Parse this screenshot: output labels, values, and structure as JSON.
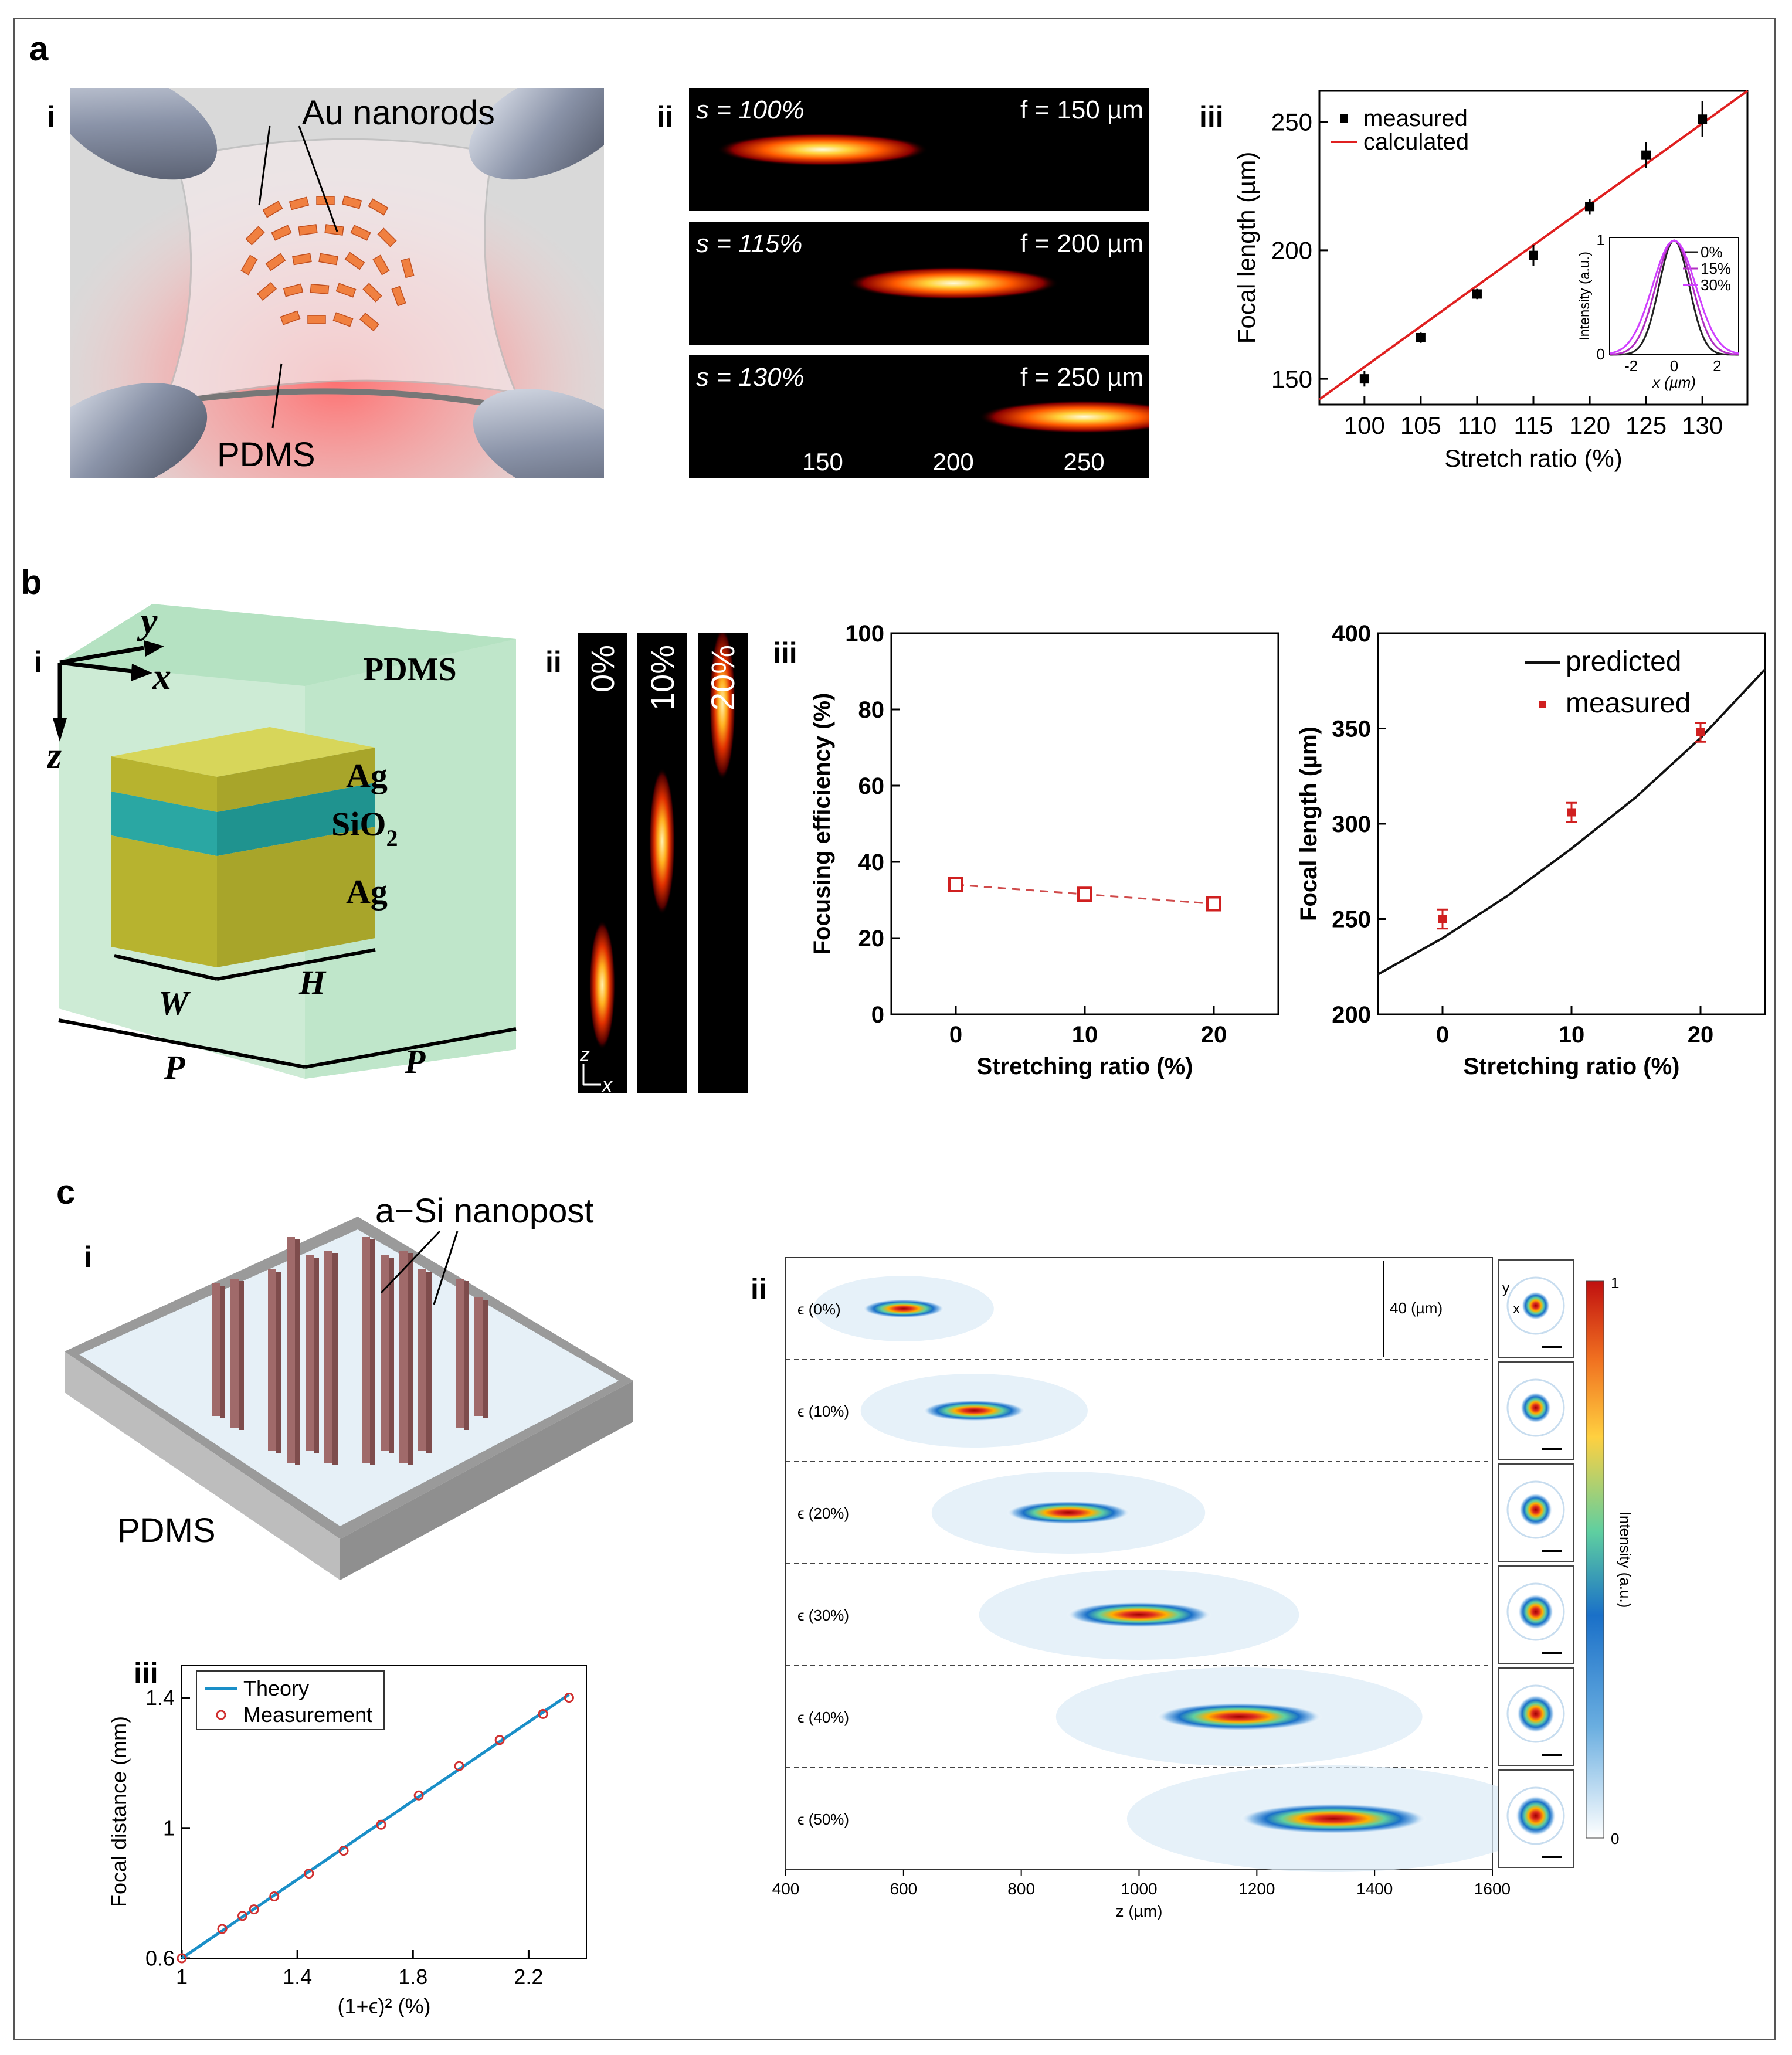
{
  "panels": {
    "a": {
      "letter": "a",
      "i": {
        "label": "i",
        "nanorods": "Au nanorods",
        "substrate": "PDMS"
      },
      "ii": {
        "label": "ii",
        "rows": [
          {
            "s": "s = 100%",
            "f": "f = 150 µm",
            "focus": 150
          },
          {
            "s": "s = 115%",
            "f": "f = 200 µm",
            "focus": 200
          },
          {
            "s": "s = 130%",
            "f": "f = 250 µm",
            "focus": 250
          }
        ],
        "ticks": [
          "150",
          "200",
          "250"
        ]
      },
      "iii": {
        "label": "iii"
      }
    },
    "b": {
      "letter": "b",
      "i": {
        "label": "i",
        "axis_y": "y",
        "axis_x": "x",
        "axis_z": "z",
        "pdms": "PDMS",
        "ag_top": "Ag",
        "sio2": "SiO",
        "sio2_sub": "2",
        "ag_bottom": "Ag",
        "w": "W",
        "h": "H",
        "p1": "P",
        "p2": "P"
      },
      "ii": {
        "label": "ii",
        "strips": [
          "0%",
          "10%",
          "20%"
        ],
        "axis_z": "z",
        "axis_x": "x"
      },
      "iii": {
        "label": "iii"
      }
    },
    "c": {
      "letter": "c",
      "i": {
        "label": "i",
        "nanopost": "a−Si nanopost",
        "pdms": "PDMS"
      },
      "ii": {
        "label": "ii",
        "scale_label": "40 (µm)",
        "rows": [
          {
            "label": "ϵ (0%)",
            "z": 600
          },
          {
            "label": "ϵ (10%)",
            "z": 720
          },
          {
            "label": "ϵ (20%)",
            "z": 880
          },
          {
            "label": "ϵ (30%)",
            "z": 1000
          },
          {
            "label": "ϵ (40%)",
            "z": 1170
          },
          {
            "label": "ϵ (50%)",
            "z": 1330
          }
        ],
        "xticks": [
          "400",
          "600",
          "800",
          "1000",
          "1200",
          "1400",
          "1600"
        ],
        "xlabel": "z (µm)",
        "inset_axes": {
          "y": "y",
          "x": "x"
        },
        "colorbar": {
          "max": "1",
          "min": "0",
          "label": "Intensity (a.u.)"
        }
      },
      "iii": {
        "label": "iii"
      }
    }
  },
  "chart_data": [
    {
      "id": "a-iii",
      "type": "line",
      "xlabel": "Stretch ratio (%)",
      "ylabel": "Focal length (µm)",
      "xlim": [
        96,
        134
      ],
      "ylim": [
        140,
        262
      ],
      "xticks": [
        100,
        105,
        110,
        115,
        120,
        125,
        130
      ],
      "yticks": [
        150,
        200,
        250
      ],
      "legend": [
        "measured",
        "calculated"
      ],
      "series": [
        {
          "name": "measured",
          "x": [
            100,
            105,
            110,
            115,
            120,
            125,
            130
          ],
          "y": [
            150,
            166,
            183,
            198,
            217,
            237,
            251
          ],
          "err": [
            3,
            2,
            2,
            4,
            3,
            5,
            7
          ]
        },
        {
          "name": "calculated",
          "x": [
            96,
            134
          ],
          "y": [
            142,
            262
          ]
        }
      ],
      "inset": {
        "xlabel": "x (µm)",
        "ylabel": "Intensity (a.u.)",
        "xticks": [
          "-2",
          "0",
          "2"
        ],
        "yticks": [
          "0",
          "1"
        ],
        "legend": [
          "0%",
          "15%",
          "30%"
        ],
        "series": [
          {
            "name": "0%",
            "sigma": 0.7,
            "color": "#222222"
          },
          {
            "name": "15%",
            "sigma": 0.85,
            "color": "#b030c0"
          },
          {
            "name": "30%",
            "sigma": 1.0,
            "color": "#d040ff"
          }
        ]
      }
    },
    {
      "id": "b-iii-efficiency",
      "type": "line",
      "xlabel": "Stretching ratio (%)",
      "ylabel": "Focusing efficiency (%)",
      "xlim": [
        -5,
        25
      ],
      "ylim": [
        0,
        100
      ],
      "xticks": [
        0,
        10,
        20
      ],
      "yticks": [
        0,
        20,
        40,
        60,
        80,
        100
      ],
      "series": [
        {
          "name": "efficiency",
          "x": [
            0,
            10,
            20
          ],
          "y": [
            34,
            31.5,
            29
          ]
        }
      ]
    },
    {
      "id": "b-iii-focal",
      "type": "line",
      "xlabel": "Stretching ratio (%)",
      "ylabel": "Focal length (µm)",
      "xlim": [
        -5,
        25
      ],
      "ylim": [
        200,
        400
      ],
      "xticks": [
        0,
        10,
        20
      ],
      "yticks": [
        200,
        250,
        300,
        350,
        400
      ],
      "legend": [
        "predicted",
        "measured"
      ],
      "series": [
        {
          "name": "predicted",
          "x": [
            -5,
            0,
            5,
            10,
            15,
            20,
            25
          ],
          "y": [
            221,
            240,
            262,
            287,
            314,
            345,
            381
          ]
        },
        {
          "name": "measured",
          "x": [
            0,
            10,
            20
          ],
          "y": [
            250,
            306,
            348
          ],
          "err": [
            5,
            5,
            5
          ]
        }
      ]
    },
    {
      "id": "c-iii",
      "type": "line",
      "xlabel": "(1+ϵ)² (%)",
      "ylabel": "Focal distance (mm)",
      "xlim": [
        1,
        2.4
      ],
      "ylim": [
        0.6,
        1.5
      ],
      "xticks": [
        "1",
        "1.4",
        "1.8",
        "2.2"
      ],
      "yticks": [
        "0.6",
        "1",
        "1.4"
      ],
      "legend": [
        "Theory",
        "Measurement"
      ],
      "series": [
        {
          "name": "Theory",
          "x": [
            1,
            2.34
          ],
          "y": [
            0.6,
            1.41
          ]
        },
        {
          "name": "Measurement",
          "x": [
            1,
            1.14,
            1.21,
            1.25,
            1.32,
            1.44,
            1.56,
            1.69,
            1.82,
            1.96,
            2.1,
            2.25,
            2.34
          ],
          "y": [
            0.6,
            0.69,
            0.73,
            0.75,
            0.79,
            0.86,
            0.93,
            1.01,
            1.1,
            1.19,
            1.27,
            1.35,
            1.4
          ]
        }
      ]
    }
  ]
}
